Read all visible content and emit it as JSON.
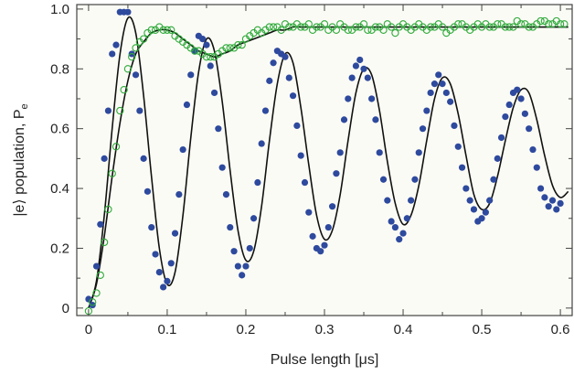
{
  "chart_data": {
    "type": "scatter",
    "xlabel": "Pulse length [μs]",
    "ylabel_main": "|e⟩ population,  P",
    "ylabel_sub": "e",
    "xlim": [
      -0.015,
      0.615
    ],
    "ylim": [
      -0.025,
      1.015
    ],
    "xticks": [
      0,
      0.1,
      0.2,
      0.3,
      0.4,
      0.5,
      0.6
    ],
    "xtick_labels": [
      "0",
      "0.1",
      "0.2",
      "0.3",
      "0.4",
      "0.5",
      "0.6"
    ],
    "yticks": [
      0,
      0.2,
      0.4,
      0.6,
      0.8,
      1.0
    ],
    "ytick_labels": [
      "0",
      "0.2",
      "0.4",
      "0.6",
      "0.8",
      "1.0"
    ],
    "grid": false,
    "colors": {
      "blue": "#2e4a9e",
      "green": "#2eaa3a",
      "fit": "#111111",
      "plot_bg": "#fbfbf5"
    },
    "series": [
      {
        "style": "filled-marker",
        "color": "#2e4a9e",
        "x": [
          0.0,
          0.005,
          0.01,
          0.015,
          0.02,
          0.025,
          0.03,
          0.035,
          0.04,
          0.045,
          0.05,
          0.055,
          0.06,
          0.065,
          0.07,
          0.075,
          0.08,
          0.085,
          0.09,
          0.095,
          0.1,
          0.105,
          0.11,
          0.115,
          0.12,
          0.125,
          0.13,
          0.135,
          0.14,
          0.145,
          0.15,
          0.155,
          0.16,
          0.165,
          0.17,
          0.175,
          0.18,
          0.185,
          0.19,
          0.195,
          0.2,
          0.205,
          0.21,
          0.215,
          0.22,
          0.225,
          0.23,
          0.235,
          0.24,
          0.245,
          0.25,
          0.255,
          0.26,
          0.265,
          0.27,
          0.275,
          0.28,
          0.285,
          0.29,
          0.295,
          0.3,
          0.305,
          0.31,
          0.315,
          0.32,
          0.325,
          0.33,
          0.335,
          0.34,
          0.345,
          0.35,
          0.355,
          0.36,
          0.365,
          0.37,
          0.375,
          0.38,
          0.385,
          0.39,
          0.395,
          0.4,
          0.405,
          0.41,
          0.415,
          0.42,
          0.425,
          0.43,
          0.435,
          0.44,
          0.445,
          0.45,
          0.455,
          0.46,
          0.465,
          0.47,
          0.475,
          0.48,
          0.485,
          0.49,
          0.495,
          0.5,
          0.505,
          0.51,
          0.515,
          0.52,
          0.525,
          0.53,
          0.535,
          0.54,
          0.545,
          0.55,
          0.555,
          0.56,
          0.565,
          0.57,
          0.575,
          0.58,
          0.585,
          0.59,
          0.595,
          0.6
        ],
        "y": [
          0.03,
          0.01,
          0.14,
          0.28,
          0.5,
          0.66,
          0.85,
          0.88,
          0.99,
          0.99,
          0.99,
          0.85,
          0.78,
          0.66,
          0.5,
          0.39,
          0.27,
          0.18,
          0.12,
          0.07,
          0.09,
          0.15,
          0.25,
          0.38,
          0.53,
          0.68,
          0.78,
          0.86,
          0.91,
          0.9,
          0.88,
          0.81,
          0.72,
          0.6,
          0.47,
          0.38,
          0.27,
          0.19,
          0.14,
          0.11,
          0.14,
          0.2,
          0.3,
          0.42,
          0.55,
          0.66,
          0.76,
          0.82,
          0.86,
          0.85,
          0.84,
          0.77,
          0.71,
          0.61,
          0.51,
          0.42,
          0.32,
          0.24,
          0.2,
          0.19,
          0.21,
          0.27,
          0.34,
          0.45,
          0.52,
          0.63,
          0.7,
          0.77,
          0.81,
          0.83,
          0.8,
          0.77,
          0.7,
          0.63,
          0.52,
          0.43,
          0.36,
          0.29,
          0.27,
          0.23,
          0.25,
          0.3,
          0.36,
          0.43,
          0.52,
          0.6,
          0.66,
          0.72,
          0.75,
          0.78,
          0.75,
          0.72,
          0.69,
          0.61,
          0.54,
          0.47,
          0.4,
          0.36,
          0.33,
          0.29,
          0.3,
          0.32,
          0.36,
          0.43,
          0.5,
          0.57,
          0.64,
          0.68,
          0.72,
          0.73,
          0.7,
          0.65,
          0.6,
          0.53,
          0.47,
          0.4,
          0.37,
          0.34,
          0.36,
          0.33,
          0.35
        ]
      },
      {
        "style": "open-marker",
        "color": "#2eaa3a",
        "x": [
          0.0,
          0.005,
          0.01,
          0.015,
          0.02,
          0.025,
          0.03,
          0.035,
          0.04,
          0.045,
          0.05,
          0.055,
          0.06,
          0.065,
          0.07,
          0.075,
          0.08,
          0.085,
          0.09,
          0.095,
          0.1,
          0.105,
          0.11,
          0.115,
          0.12,
          0.125,
          0.13,
          0.135,
          0.14,
          0.145,
          0.15,
          0.155,
          0.16,
          0.165,
          0.17,
          0.175,
          0.18,
          0.185,
          0.19,
          0.195,
          0.2,
          0.205,
          0.21,
          0.215,
          0.22,
          0.225,
          0.23,
          0.235,
          0.24,
          0.245,
          0.25,
          0.255,
          0.26,
          0.265,
          0.27,
          0.275,
          0.28,
          0.285,
          0.29,
          0.295,
          0.3,
          0.305,
          0.31,
          0.315,
          0.32,
          0.325,
          0.33,
          0.335,
          0.34,
          0.345,
          0.35,
          0.355,
          0.36,
          0.365,
          0.37,
          0.375,
          0.38,
          0.385,
          0.39,
          0.395,
          0.4,
          0.405,
          0.41,
          0.415,
          0.42,
          0.425,
          0.43,
          0.435,
          0.44,
          0.445,
          0.45,
          0.455,
          0.46,
          0.465,
          0.47,
          0.475,
          0.48,
          0.485,
          0.49,
          0.495,
          0.5,
          0.505,
          0.51,
          0.515,
          0.52,
          0.525,
          0.53,
          0.535,
          0.54,
          0.545,
          0.55,
          0.555,
          0.56,
          0.565,
          0.57,
          0.575,
          0.58,
          0.585,
          0.59,
          0.595,
          0.6,
          0.605
        ],
        "y": [
          -0.01,
          0.02,
          0.05,
          0.11,
          0.22,
          0.33,
          0.45,
          0.54,
          0.66,
          0.73,
          0.8,
          0.84,
          0.87,
          0.89,
          0.9,
          0.92,
          0.93,
          0.93,
          0.94,
          0.93,
          0.93,
          0.93,
          0.91,
          0.9,
          0.89,
          0.88,
          0.87,
          0.86,
          0.86,
          0.85,
          0.84,
          0.84,
          0.84,
          0.85,
          0.86,
          0.87,
          0.87,
          0.87,
          0.88,
          0.88,
          0.9,
          0.91,
          0.92,
          0.93,
          0.92,
          0.93,
          0.94,
          0.94,
          0.94,
          0.93,
          0.95,
          0.94,
          0.94,
          0.95,
          0.94,
          0.94,
          0.95,
          0.93,
          0.94,
          0.94,
          0.95,
          0.93,
          0.94,
          0.93,
          0.95,
          0.94,
          0.93,
          0.93,
          0.94,
          0.94,
          0.95,
          0.93,
          0.93,
          0.94,
          0.94,
          0.93,
          0.95,
          0.94,
          0.92,
          0.94,
          0.95,
          0.94,
          0.93,
          0.94,
          0.95,
          0.94,
          0.93,
          0.94,
          0.94,
          0.95,
          0.94,
          0.92,
          0.93,
          0.94,
          0.95,
          0.95,
          0.94,
          0.93,
          0.94,
          0.95,
          0.94,
          0.95,
          0.94,
          0.94,
          0.95,
          0.95,
          0.94,
          0.94,
          0.94,
          0.96,
          0.95,
          0.95,
          0.94,
          0.94,
          0.95,
          0.96,
          0.96,
          0.95,
          0.95,
          0.96,
          0.95,
          0.95
        ]
      }
    ],
    "fits": [
      {
        "color": "#111111",
        "model": "0.53 + 0.5*exp(-x/0.9)*... (damped oscillation)",
        "x": [
          0.0,
          0.01,
          0.02,
          0.03,
          0.04,
          0.05,
          0.06,
          0.07,
          0.08,
          0.09,
          0.1,
          0.11,
          0.12,
          0.13,
          0.14,
          0.15,
          0.16,
          0.17,
          0.18,
          0.19,
          0.2,
          0.21,
          0.22,
          0.23,
          0.24,
          0.25,
          0.26,
          0.27,
          0.28,
          0.29,
          0.3,
          0.31,
          0.32,
          0.33,
          0.34,
          0.35,
          0.36,
          0.37,
          0.38,
          0.39,
          0.4,
          0.41,
          0.42,
          0.43,
          0.44,
          0.45,
          0.46,
          0.47,
          0.48,
          0.49,
          0.5,
          0.51,
          0.52,
          0.53,
          0.54,
          0.55,
          0.56,
          0.57,
          0.58,
          0.59,
          0.6,
          0.61
        ],
        "y": [
          0.0,
          0.09,
          0.31,
          0.6,
          0.85,
          0.97,
          0.92,
          0.71,
          0.44,
          0.2,
          0.08,
          0.12,
          0.31,
          0.57,
          0.79,
          0.9,
          0.86,
          0.69,
          0.46,
          0.26,
          0.16,
          0.19,
          0.34,
          0.56,
          0.75,
          0.85,
          0.82,
          0.67,
          0.48,
          0.31,
          0.23,
          0.26,
          0.38,
          0.56,
          0.72,
          0.8,
          0.78,
          0.66,
          0.49,
          0.35,
          0.28,
          0.31,
          0.41,
          0.56,
          0.7,
          0.77,
          0.75,
          0.65,
          0.51,
          0.38,
          0.33,
          0.35,
          0.44,
          0.56,
          0.67,
          0.73,
          0.72,
          0.63,
          0.51,
          0.41,
          0.37,
          0.39
        ]
      },
      {
        "color": "#111111",
        "model": "incoherent saturation curve",
        "x": [
          0.0,
          0.01,
          0.02,
          0.03,
          0.04,
          0.05,
          0.06,
          0.07,
          0.08,
          0.09,
          0.1,
          0.11,
          0.12,
          0.13,
          0.14,
          0.15,
          0.16,
          0.17,
          0.18,
          0.19,
          0.2,
          0.21,
          0.22,
          0.23,
          0.24,
          0.25,
          0.26,
          0.27,
          0.28,
          0.29,
          0.3,
          0.32,
          0.34,
          0.36,
          0.38,
          0.4,
          0.42,
          0.44,
          0.46,
          0.48,
          0.5,
          0.52,
          0.54,
          0.56,
          0.58,
          0.6,
          0.61
        ],
        "y": [
          0.0,
          0.08,
          0.24,
          0.44,
          0.62,
          0.76,
          0.85,
          0.89,
          0.92,
          0.93,
          0.93,
          0.92,
          0.9,
          0.88,
          0.86,
          0.85,
          0.84,
          0.85,
          0.86,
          0.88,
          0.89,
          0.9,
          0.91,
          0.92,
          0.93,
          0.93,
          0.94,
          0.94,
          0.94,
          0.94,
          0.94,
          0.94,
          0.94,
          0.94,
          0.94,
          0.94,
          0.94,
          0.94,
          0.94,
          0.94,
          0.94,
          0.94,
          0.94,
          0.94,
          0.94,
          0.94,
          0.94
        ]
      }
    ]
  }
}
